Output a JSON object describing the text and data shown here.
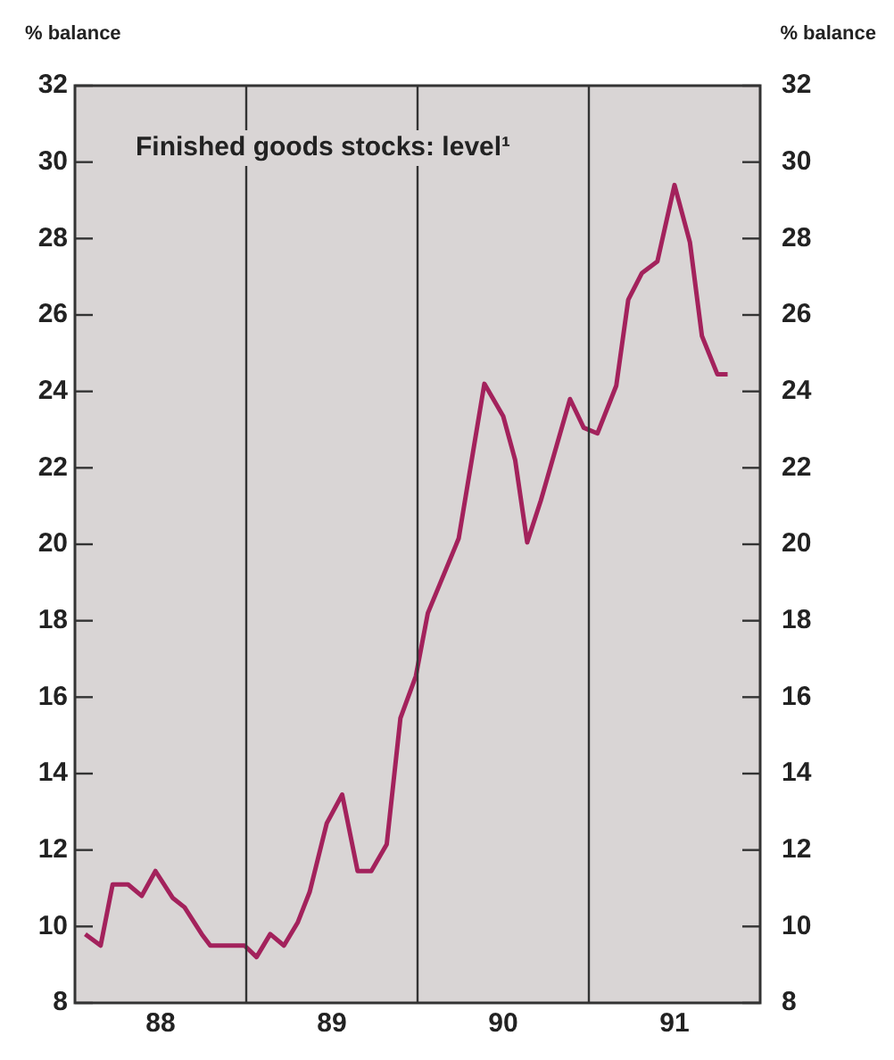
{
  "chart_data": {
    "type": "line",
    "title": "Finished goods stocks: level¹",
    "ylabel": "% balance",
    "y2label": "% balance",
    "x": [
      87.56,
      87.65,
      87.72,
      87.81,
      87.89,
      87.97,
      88.07,
      88.14,
      88.24,
      88.29,
      88.49,
      88.56,
      88.64,
      88.72,
      88.8,
      88.87,
      88.97,
      89.06,
      89.15,
      89.23,
      89.32,
      89.4,
      89.49,
      89.56,
      89.74,
      89.89,
      90,
      90.07,
      90.14,
      90.22,
      90.39,
      90.47,
      90.55,
      90.66,
      90.73,
      90.81,
      90.9,
      91,
      91.09,
      91.16,
      91.25,
      91.31
    ],
    "series": [
      {
        "color": "#a3225c",
        "values": [
          9.8,
          9.5,
          11.1,
          11.1,
          10.8,
          11.45,
          10.75,
          10.5,
          9.8,
          9.5,
          9.5,
          9.2,
          9.8,
          9.5,
          10.1,
          10.9,
          12.7,
          13.45,
          11.45,
          11.45,
          12.15,
          15.45,
          16.55,
          18.2,
          20.15,
          24.2,
          23.35,
          22.2,
          20.05,
          21.15,
          23.8,
          23.05,
          22.9,
          24.15,
          26.4,
          27.1,
          27.4,
          29.4,
          27.9,
          25.45,
          24.45,
          24.45
        ]
      }
    ],
    "xlim": [
      87.5,
      91.5
    ],
    "xticks": [
      88,
      89,
      90,
      91
    ],
    "ylim": [
      8,
      32
    ],
    "yticks": [
      8,
      10,
      12,
      14,
      16,
      18,
      20,
      22,
      24,
      26,
      28,
      30,
      32
    ],
    "y2lim": [
      8,
      32
    ],
    "y2ticks": [
      8,
      10,
      12,
      14,
      16,
      18,
      20,
      22,
      24,
      26,
      28,
      30,
      32
    ],
    "ref_lines": [
      {
        "axis": "x",
        "value": 88.5,
        "color": "#333333"
      },
      {
        "axis": "x",
        "value": 89.5,
        "color": "#333333"
      },
      {
        "axis": "x",
        "value": 90.5,
        "color": "#333333"
      }
    ],
    "grid": false,
    "legend": false,
    "line_style": "solid",
    "marker": "none"
  }
}
